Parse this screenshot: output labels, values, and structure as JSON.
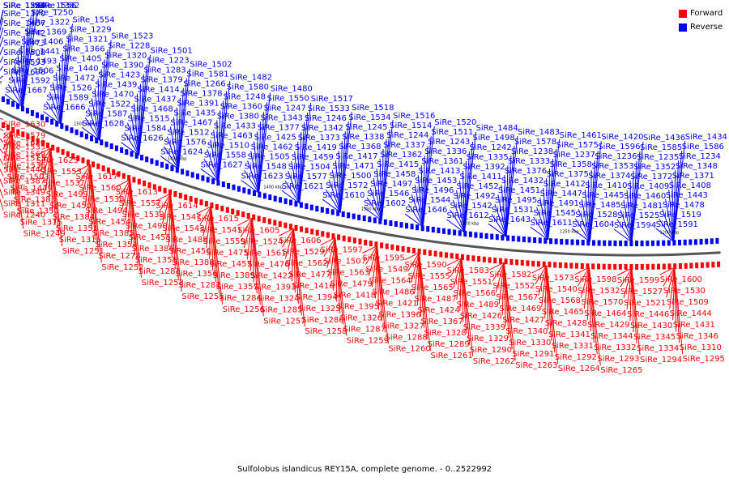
{
  "legend": {
    "forward_label": "Forward",
    "reverse_label": "Reverse",
    "forward_color": "#ff0000",
    "reverse_color": "#0000ff"
  },
  "caption": "Sulfolobus islandicus REY15A, complete genome. - 0..2522992",
  "scale_ticks": [
    "1550 kbp",
    "1500 kbp",
    "1450 kbp",
    "1400 kbp",
    "1350 kbp",
    "1300 kbp",
    "1250 kbp",
    "1200 kbp"
  ],
  "reverse_genes": [
    "SiRe_1698",
    "SiRe_1667",
    "SiRe_1666",
    "SiRe_1628",
    "SiRe_1626",
    "SiRe_1624",
    "SiRe_1627",
    "SiRe_1623",
    "SiRe_1621",
    "SiRe_1610",
    "SiRe_1602",
    "SiRe_1646",
    "SiRe_1612",
    "SiRe_1643",
    "SiRe_1611",
    "SiRe_1604",
    "SiRe_1594",
    "SiRe_1591",
    "SiRe_1593",
    "SiRe_1592",
    "SiRe_1589",
    "SiRe_1587",
    "SiRe_1584",
    "SiRe_1576",
    "SiRe_1558",
    "SiRe_1548",
    "SiRe_1577",
    "SiRe_1572",
    "SiRe_1546",
    "SiRe_1544",
    "SiRe_1542",
    "SiRe_1531",
    "SiRe_1545",
    "SiRe_1528",
    "SiRe_1525",
    "SiRe_1519",
    "SiRe_1508",
    "SiRe_1506",
    "SiRe_1526",
    "SiRe_1522",
    "SiRe_1515",
    "SiRe_1512",
    "SiRe_1510",
    "SiRe_1505",
    "SiRe_1504",
    "SiRe_1500",
    "SiRe_1497",
    "SiRe_1496",
    "SiRe_1492",
    "SiRe_1495",
    "SiRe_1491",
    "SiRe_1485",
    "SiRe_1481",
    "SiRe_1478",
    "SiRe_1473",
    "SiRe_1493",
    "SiRe_1472",
    "SiRe_1470",
    "SiRe_1468",
    "SiRe_1467",
    "SiRe_1463",
    "SiRe_1462",
    "SiRe_1459",
    "SiRe_1471",
    "SiRe_1458",
    "SiRe_1453",
    "SiRe_1452",
    "SiRe_1451",
    "SiRe_1447",
    "SiRe_1445",
    "SiRe_1460",
    "SiRe_1443",
    "SiRe_1442",
    "SiRe_1441",
    "SiRe_1440",
    "SiRe_1439",
    "SiRe_1437",
    "SiRe_1435",
    "SiRe_1433",
    "SiRe_1425",
    "SiRe_1419",
    "SiRe_1417",
    "SiRe_1415",
    "SiRe_1413",
    "SiRe_1411",
    "SiRe_1432",
    "SiRe_1412",
    "SiRe_1410",
    "SiRe_1409",
    "SiRe_1408",
    "SiRe_1407",
    "SiRe_1406",
    "SiRe_1405",
    "SiRe_1423",
    "SiRe_1414",
    "SiRe_1391",
    "SiRe_1380",
    "SiRe_1377",
    "SiRe_1373",
    "SiRe_1368",
    "SiRe_1362",
    "SiRe_1361",
    "SiRe_1392",
    "SiRe_1376",
    "SiRe_1375",
    "SiRe_1374",
    "SiRe_1372",
    "SiRe_1371",
    "SiRe_1370",
    "SiRe_1369",
    "SiRe_1366",
    "SiRe_1390",
    "SiRe_1379",
    "SiRe_1378",
    "SiRe_1360",
    "SiRe_1343",
    "SiRe_1342",
    "SiRe_1338",
    "SiRe_1337",
    "SiRe_1336",
    "SiRe_1335",
    "SiRe_1333",
    "SiRe_1358",
    "SiRe_1353",
    "SiRe_1352",
    "SiRe_1348",
    "SiRe_1323",
    "SiRe_1322",
    "SiRe_1321",
    "SiRe_1320",
    "SiRe_1283",
    "SiRe_1266",
    "SiRe_1248",
    "SiRe_1247",
    "SiRe_1246",
    "SiRe_1245",
    "SiRe_1244",
    "SiRe_1243",
    "SiRe_1242",
    "SiRe_1238",
    "SiRe_1237",
    "SiRe_1236",
    "SiRe_1235",
    "SiRe_1234",
    "SiRe_1254",
    "SiRe_1250",
    "SiRe_1229",
    "SiRe_1228",
    "SiRe_1223",
    "SiRe_1581",
    "SiRe_1580",
    "SiRe_1550",
    "SiRe_1533",
    "SiRe_1534",
    "SiRe_1514",
    "SiRe_1511",
    "SiRe_1498",
    "SiRe_1578",
    "SiRe_1575",
    "SiRe_1596",
    "SiRe_1585",
    "SiRe_1586",
    "SiRe_1588",
    "SiRe_1556",
    "SiRe_1554",
    "SiRe_1523",
    "SiRe_1501",
    "SiRe_1502",
    "SiRe_1482",
    "SiRe_1480",
    "SiRe_1517",
    "SiRe_1518",
    "SiRe_1516",
    "SiRe_1520",
    "SiRe_1484",
    "SiRe_1483",
    "SiRe_1461",
    "SiRe_1420",
    "SiRe_1436",
    "SiRe_1434",
    "SiRe_1381",
    "SiRe_1382"
  ],
  "forward_genes": [
    "SiRe_1630",
    "SiRe_1620",
    "SiRe_1625",
    "SiRe_1617",
    "SiRe_1613",
    "SiRe_1614",
    "SiRe_1615",
    "SiRe_1605",
    "SiRe_1606",
    "SiRe_1597",
    "SiRe_1595",
    "SiRe_1590",
    "SiRe_1583",
    "SiRe_1582",
    "SiRe_1573",
    "SiRe_1598",
    "SiRe_1599",
    "SiRe_1600",
    "SiRe_1579",
    "SiRe_1569",
    "SiRe_1553",
    "SiRe_1560",
    "SiRe_1557",
    "SiRe_1547",
    "SiRe_1541",
    "SiRe_1524",
    "SiRe_1529",
    "SiRe_1507",
    "SiRe_1549",
    "SiRe_1555",
    "SiRe_1551",
    "SiRe_1552",
    "SiRe_1540",
    "SiRe_1532",
    "SiRe_1527",
    "SiRe_1530",
    "SiRe_1535",
    "SiRe_1536",
    "SiRe_1537",
    "SiRe_1538",
    "SiRe_1539",
    "SiRe_1543",
    "SiRe_1559",
    "SiRe_1561",
    "SiRe_1562",
    "SiRe_1563",
    "SiRe_1564",
    "SiRe_1565",
    "SiRe_1566",
    "SiRe_1567",
    "SiRe_1568",
    "SiRe_1570",
    "SiRe_1521",
    "SiRe_1509",
    "SiRe_1513",
    "SiRe_1503",
    "SiRe_1499",
    "SiRe_1494",
    "SiRe_1490",
    "SiRe_1488",
    "SiRe_1475",
    "SiRe_1476",
    "SiRe_1477",
    "SiRe_1479",
    "SiRe_1486",
    "SiRe_1487",
    "SiRe_1489",
    "SiRe_1469",
    "SiRe_1465",
    "SiRe_1464",
    "SiRe_1446",
    "SiRe_1444",
    "SiRe_1448",
    "SiRe_1449",
    "SiRe_1450",
    "SiRe_1454",
    "SiRe_1455",
    "SiRe_1456",
    "SiRe_1457",
    "SiRe_1422",
    "SiRe_1416",
    "SiRe_1418",
    "SiRe_1421",
    "SiRe_1424",
    "SiRe_1426",
    "SiRe_1427",
    "SiRe_1428",
    "SiRe_1429",
    "SiRe_1430",
    "SiRe_1431",
    "SiRe_1387",
    "SiRe_1383",
    "SiRe_1384",
    "SiRe_1385",
    "SiRe_1386",
    "SiRe_1388",
    "SiRe_1389",
    "SiRe_1393",
    "SiRe_1394",
    "SiRe_1395",
    "SiRe_1396",
    "SiRe_1367",
    "SiRe_1339",
    "SiRe_1340",
    "SiRe_1341",
    "SiRe_1344",
    "SiRe_1345",
    "SiRe_1346",
    "SiRe_1349",
    "SiRe_1350",
    "SiRe_1351",
    "SiRe_1354",
    "SiRe_1355",
    "SiRe_1356",
    "SiRe_1357",
    "SiRe_1324",
    "SiRe_1325",
    "SiRe_1326",
    "SiRe_1327",
    "SiRe_1328",
    "SiRe_1329",
    "SiRe_1330",
    "SiRe_1331",
    "SiRe_1332",
    "SiRe_1334",
    "SiRe_1310",
    "SiRe_1311",
    "SiRe_1315",
    "SiRe_1316",
    "SiRe_1278",
    "SiRe_1281",
    "SiRe_1282",
    "SiRe_1284",
    "SiRe_1285",
    "SiRe_1286",
    "SiRe_1287",
    "SiRe_1288",
    "SiRe_1289",
    "SiRe_1290",
    "SiRe_1291",
    "SiRe_1292",
    "SiRe_1293",
    "SiRe_1294",
    "SiRe_1295",
    "SiRe_1240",
    "SiRe_1249",
    "SiRe_1251",
    "SiRe_1252",
    "SiRe_1253",
    "SiRe_1255",
    "SiRe_1256",
    "SiRe_1257",
    "SiRe_1258",
    "SiRe_1259",
    "SiRe_1260",
    "SiRe_1261",
    "SiRe_1262",
    "SiRe_1263",
    "SiRe_1264",
    "SiRe_1265"
  ]
}
